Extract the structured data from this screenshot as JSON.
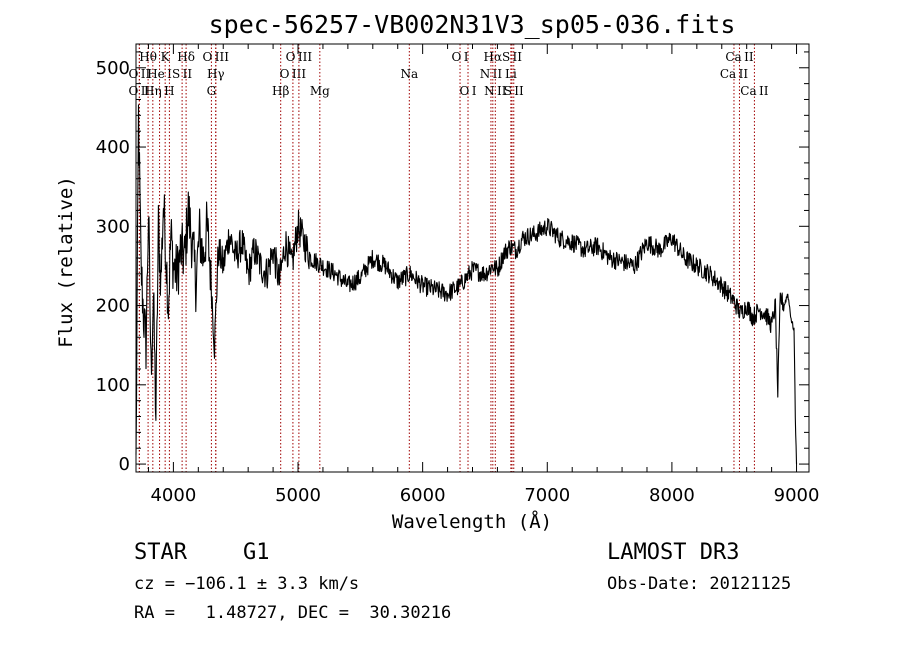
{
  "chart_data": {
    "type": "line",
    "title": "spec-56257-VB002N31V3_sp05-036.fits",
    "xlabel": "Wavelength (Å)",
    "ylabel": "Flux (relative)",
    "xlim": [
      3700,
      9100
    ],
    "ylim": [
      -10,
      530
    ],
    "x_ticks": [
      4000,
      5000,
      6000,
      7000,
      8000,
      9000
    ],
    "y_ticks": [
      0,
      100,
      200,
      300,
      400,
      500
    ],
    "series": [
      {
        "name": "flux",
        "x": [
          3700,
          3720,
          3740,
          3760,
          3780,
          3800,
          3820,
          3840,
          3860,
          3880,
          3900,
          3920,
          3940,
          3960,
          3980,
          4000,
          4030,
          4060,
          4090,
          4120,
          4150,
          4180,
          4210,
          4240,
          4270,
          4300,
          4330,
          4360,
          4400,
          4450,
          4500,
          4550,
          4600,
          4650,
          4700,
          4750,
          4800,
          4850,
          4900,
          4950,
          5000,
          5100,
          5200,
          5300,
          5400,
          5500,
          5600,
          5700,
          5800,
          5900,
          6000,
          6100,
          6200,
          6300,
          6400,
          6500,
          6560,
          6600,
          6650,
          6700,
          6750,
          6800,
          6900,
          7000,
          7100,
          7200,
          7300,
          7400,
          7500,
          7600,
          7700,
          7800,
          7900,
          8000,
          8100,
          8200,
          8300,
          8400,
          8450,
          8500,
          8550,
          8600,
          8650,
          8700,
          8750,
          8800,
          8830,
          8850,
          8870,
          8900,
          8930,
          8960,
          8980,
          8990,
          9000
        ],
        "y": [
          0,
          440,
          250,
          190,
          150,
          320,
          120,
          210,
          60,
          300,
          230,
          330,
          270,
          200,
          290,
          250,
          240,
          270,
          260,
          320,
          280,
          230,
          290,
          260,
          300,
          240,
          150,
          270,
          250,
          290,
          260,
          280,
          240,
          270,
          250,
          240,
          270,
          230,
          280,
          250,
          300,
          260,
          250,
          240,
          225,
          235,
          260,
          250,
          230,
          240,
          225,
          220,
          215,
          225,
          245,
          240,
          250,
          245,
          265,
          275,
          270,
          285,
          290,
          300,
          285,
          280,
          270,
          275,
          260,
          255,
          250,
          280,
          270,
          285,
          260,
          250,
          240,
          225,
          215,
          205,
          190,
          200,
          185,
          195,
          190,
          175,
          200,
          90,
          210,
          200,
          215,
          180,
          170,
          60,
          0
        ]
      }
    ],
    "line_markers": [
      {
        "label": "O II",
        "wave": 3727,
        "row": 2
      },
      {
        "label": "Hθ",
        "wave": 3797,
        "row": 0
      },
      {
        "label": "O II",
        "wave": 3727,
        "row": 1
      },
      {
        "label": "Hη",
        "wave": 3835,
        "row": 2
      },
      {
        "label": "He I",
        "wave": 3889,
        "row": 1
      },
      {
        "label": "K",
        "wave": 3934,
        "row": 0
      },
      {
        "label": "H",
        "wave": 3968,
        "row": 2
      },
      {
        "label": "S II",
        "wave": 4070,
        "row": 1
      },
      {
        "label": "Hδ",
        "wave": 4102,
        "row": 0
      },
      {
        "label": "G",
        "wave": 4305,
        "row": 2
      },
      {
        "label": "O III",
        "wave": 4340,
        "row": 0
      },
      {
        "label": "Hγ",
        "wave": 4340,
        "row": 1
      },
      {
        "label": "Hβ",
        "wave": 4861,
        "row": 2
      },
      {
        "label": "O III",
        "wave": 4959,
        "row": 1
      },
      {
        "label": "O III",
        "wave": 5007,
        "row": 0
      },
      {
        "label": "Mg",
        "wave": 5175,
        "row": 2
      },
      {
        "label": "Na",
        "wave": 5893,
        "row": 1
      },
      {
        "label": "O I",
        "wave": 6300,
        "row": 0
      },
      {
        "label": "O I",
        "wave": 6364,
        "row": 2
      },
      {
        "label": "N II",
        "wave": 6548,
        "row": 1
      },
      {
        "label": "Hα",
        "wave": 6563,
        "row": 0
      },
      {
        "label": "N II",
        "wave": 6583,
        "row": 2
      },
      {
        "label": "S II",
        "wave": 6717,
        "row": 0
      },
      {
        "label": "Li",
        "wave": 6708,
        "row": 1
      },
      {
        "label": "S II",
        "wave": 6731,
        "row": 2
      },
      {
        "label": "Ca II",
        "wave": 8498,
        "row": 1
      },
      {
        "label": "Ca II",
        "wave": 8542,
        "row": 0
      },
      {
        "label": "Ca II",
        "wave": 8662,
        "row": 2
      }
    ]
  },
  "info": {
    "object_class": "STAR",
    "subclass": "G1",
    "survey": "LAMOST DR3",
    "cz": "cz = −106.1 ± 3.3 km/s",
    "obs_date": "Obs-Date: 20121125",
    "coords": "RA =   1.48727, DEC =  30.30216"
  },
  "colors": {
    "line_marker": "#a00000",
    "spectrum": "#000000"
  }
}
